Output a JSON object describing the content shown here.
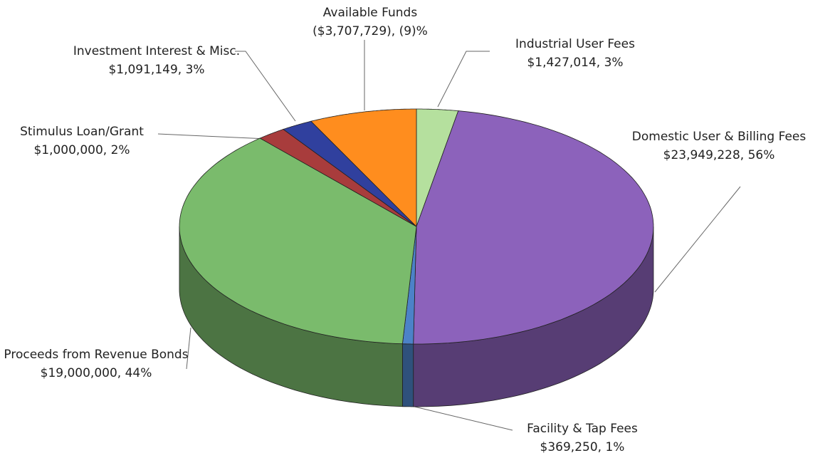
{
  "chart_data": {
    "type": "pie",
    "categories": [
      "Industrial User Fees",
      "Domestic User & Billing Fees",
      "Facility & Tap Fees",
      "Proceeds from Revenue Bonds",
      "Stimulus Loan/Grant",
      "Investment Interest & Misc.",
      "Available Funds"
    ],
    "values": [
      1427014,
      23949228,
      369250,
      19000000,
      1000000,
      1091149,
      -3707729
    ],
    "value_labels": [
      "$1,427,014, 3%",
      "$23,949,228, 56%",
      "$369,250, 1%",
      "$19,000,000, 44%",
      "$1,000,000, 2%",
      "$1,091,149, 3%",
      "($3,707,729), (9)%"
    ],
    "colors": [
      "#b5e09e",
      "#8c62bb",
      "#4c82c8",
      "#7abb6c",
      "#a83c3c",
      "#30409e",
      "#ff8d1e"
    ]
  }
}
